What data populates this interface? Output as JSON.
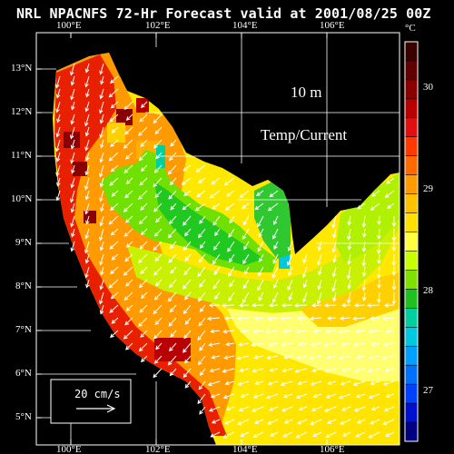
{
  "title": "NRL NPACNFS 72-Hr Forecast valid at 2001/08/25 00Z",
  "depth_label": "10   m",
  "field_label": "Temp/Current",
  "scale_label": "20 cm/s",
  "colorbar": {
    "unit": "°C",
    "labels": [
      "30",
      "29",
      "28",
      "27"
    ],
    "colors": [
      "#3a0000",
      "#600000",
      "#8a0000",
      "#b80000",
      "#e01010",
      "#ff3a00",
      "#ff6a00",
      "#ff9a00",
      "#ffc000",
      "#ffe000",
      "#ffff40",
      "#c8ff00",
      "#80e000",
      "#20c020",
      "#00d0a0",
      "#00c8e0",
      "#00a0ff",
      "#0070ff",
      "#0040ff",
      "#0010d0",
      "#000080"
    ]
  },
  "axes": {
    "top": [
      "100°E",
      "102°E",
      "104°E",
      "106°E"
    ],
    "bottom": [
      "100°E",
      "102°E",
      "104°E",
      "106°E"
    ],
    "left": [
      "13°N",
      "12°N",
      "11°N",
      "10°N",
      "9°N",
      "8°N",
      "7°N",
      "6°N",
      "5°N"
    ]
  },
  "colors": {
    "background": "#000000",
    "text": "#ffffff",
    "vectors": "#ffffff"
  }
}
